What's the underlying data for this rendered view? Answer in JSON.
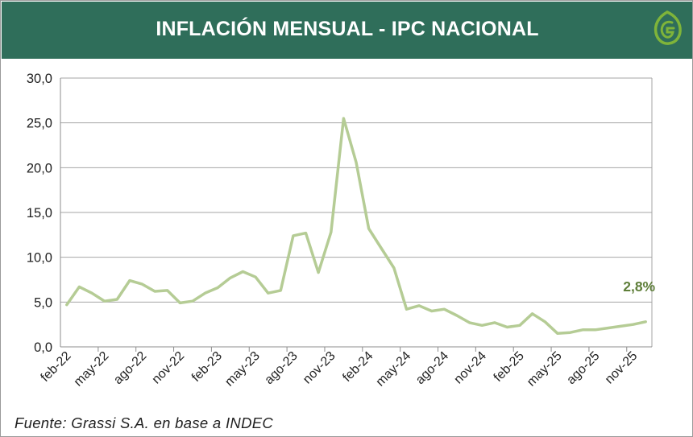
{
  "header": {
    "title": "INFLACIÓN MENSUAL - IPC NACIONAL",
    "logo_icon": "leaf-g-icon"
  },
  "footer": {
    "source": "Fuente: Grassi S.A. en base a INDEC"
  },
  "colors": {
    "header_bg": "#2f6e5a",
    "line": "#b5cc95",
    "annotation": "#5f7f3a",
    "grid": "#a6a6a6"
  },
  "chart_data": {
    "type": "line",
    "title": "INFLACIÓN MENSUAL - IPC NACIONAL",
    "xlabel": "",
    "ylabel": "",
    "ylim": [
      0,
      30
    ],
    "yticks": [
      0,
      5,
      10,
      15,
      20,
      25,
      30
    ],
    "ytick_labels": [
      "0,0",
      "5,0",
      "10,0",
      "15,0",
      "20,0",
      "25,0",
      "30,0"
    ],
    "grid": true,
    "x": [
      "feb-22",
      "mar-22",
      "abr-22",
      "may-22",
      "jun-22",
      "jul-22",
      "ago-22",
      "sep-22",
      "oct-22",
      "nov-22",
      "dic-22",
      "ene-23",
      "feb-23",
      "mar-23",
      "abr-23",
      "may-23",
      "jun-23",
      "jul-23",
      "ago-23",
      "sep-23",
      "oct-23",
      "nov-23",
      "dic-23",
      "ene-24",
      "feb-24",
      "mar-24",
      "abr-24",
      "may-24",
      "jun-24",
      "jul-24",
      "ago-24",
      "sep-24",
      "oct-24",
      "nov-24",
      "dic-24",
      "ene-25",
      "feb-25",
      "mar-25",
      "abr-25",
      "may-25",
      "jun-25",
      "jul-25",
      "ago-25",
      "sep-25",
      "oct-25",
      "nov-25",
      "dic-25"
    ],
    "xtick_labels": [
      "feb-22",
      "may-22",
      "ago-22",
      "nov-22",
      "feb-23",
      "may-23",
      "ago-23",
      "nov-23",
      "feb-24",
      "may-24",
      "ago-24",
      "nov-24",
      "feb-25",
      "may-25",
      "ago-25",
      "nov-25"
    ],
    "series": [
      {
        "name": "IPC Nacional",
        "values": [
          4.7,
          6.7,
          6.0,
          5.1,
          5.3,
          7.4,
          7.0,
          6.2,
          6.3,
          4.9,
          5.1,
          6.0,
          6.6,
          7.7,
          8.4,
          7.8,
          6.0,
          6.3,
          12.4,
          12.7,
          8.3,
          12.8,
          25.5,
          20.6,
          13.2,
          11.0,
          8.8,
          4.2,
          4.6,
          4.0,
          4.2,
          3.5,
          2.7,
          2.4,
          2.7,
          2.2,
          2.4,
          3.7,
          2.8,
          1.5,
          1.6,
          1.9,
          1.9,
          2.1,
          2.3,
          2.5,
          2.8
        ]
      }
    ],
    "annotations": [
      {
        "text": "2,8%",
        "series_index": 46
      }
    ]
  }
}
